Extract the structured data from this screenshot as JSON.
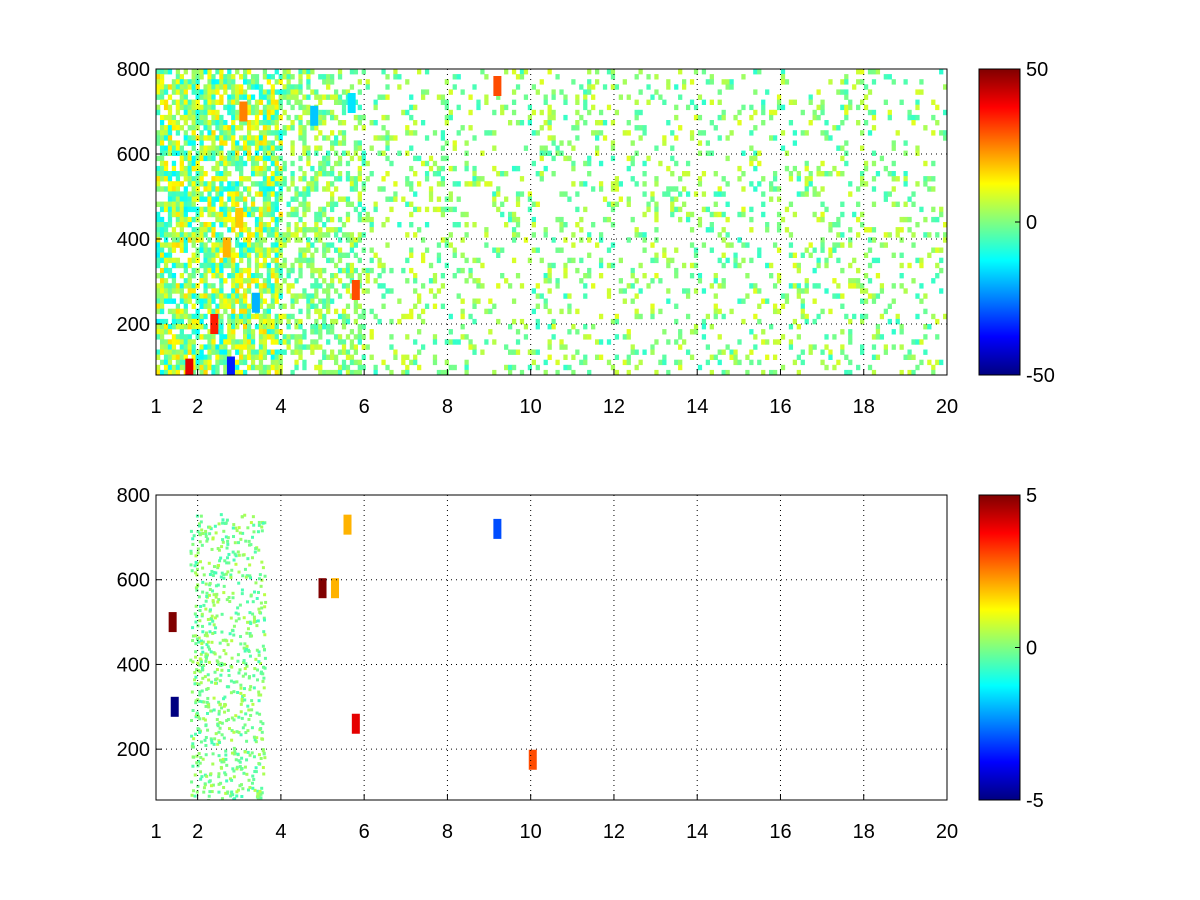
{
  "chart_data": [
    {
      "type": "heatmap",
      "title": "",
      "xlabel": "",
      "ylabel": "",
      "xlim": [
        1,
        20
      ],
      "ylim": [
        80,
        800
      ],
      "x_ticks": [
        "1",
        "2",
        "4",
        "6",
        "8",
        "10",
        "12",
        "14",
        "16",
        "18",
        "20"
      ],
      "y_ticks": [
        "200",
        "400",
        "600",
        "800"
      ],
      "grid": true,
      "colormap": "jet",
      "colorbar": {
        "min": -50,
        "max": 50,
        "tick_labels": [
          "50",
          "0",
          "-50"
        ]
      },
      "features": [
        {
          "x": 1.8,
          "y": 95,
          "v": 40
        },
        {
          "x": 2.4,
          "y": 200,
          "v": 35
        },
        {
          "x": 2.7,
          "y": 380,
          "v": 20
        },
        {
          "x": 3.0,
          "y": 450,
          "v": 18
        },
        {
          "x": 3.1,
          "y": 700,
          "v": 25
        },
        {
          "x": 2.8,
          "y": 100,
          "v": -35
        },
        {
          "x": 3.4,
          "y": 250,
          "v": -20
        },
        {
          "x": 4.8,
          "y": 690,
          "v": -18
        },
        {
          "x": 5.7,
          "y": 720,
          "v": -15
        },
        {
          "x": 5.8,
          "y": 280,
          "v": 30
        },
        {
          "x": 9.2,
          "y": 760,
          "v": 30
        }
      ]
    },
    {
      "type": "heatmap",
      "title": "",
      "xlabel": "",
      "ylabel": "",
      "xlim": [
        1,
        20
      ],
      "ylim": [
        80,
        800
      ],
      "x_ticks": [
        "1",
        "2",
        "4",
        "6",
        "8",
        "10",
        "12",
        "14",
        "16",
        "18",
        "20"
      ],
      "y_ticks": [
        "200",
        "400",
        "600",
        "800"
      ],
      "grid": true,
      "colormap": "jet",
      "colorbar": {
        "min": -5,
        "max": 5,
        "tick_labels": [
          "5",
          "0",
          "-5"
        ]
      },
      "features": [
        {
          "x": 1.4,
          "y": 500,
          "v": 5
        },
        {
          "x": 1.45,
          "y": 300,
          "v": -5
        },
        {
          "x": 5.0,
          "y": 580,
          "v": 5
        },
        {
          "x": 5.3,
          "y": 580,
          "v": 2
        },
        {
          "x": 5.8,
          "y": 260,
          "v": 4
        },
        {
          "x": 5.6,
          "y": 730,
          "v": 2
        },
        {
          "x": 9.2,
          "y": 720,
          "v": -3
        },
        {
          "x": 10.05,
          "y": 175,
          "v": 3
        }
      ]
    }
  ]
}
